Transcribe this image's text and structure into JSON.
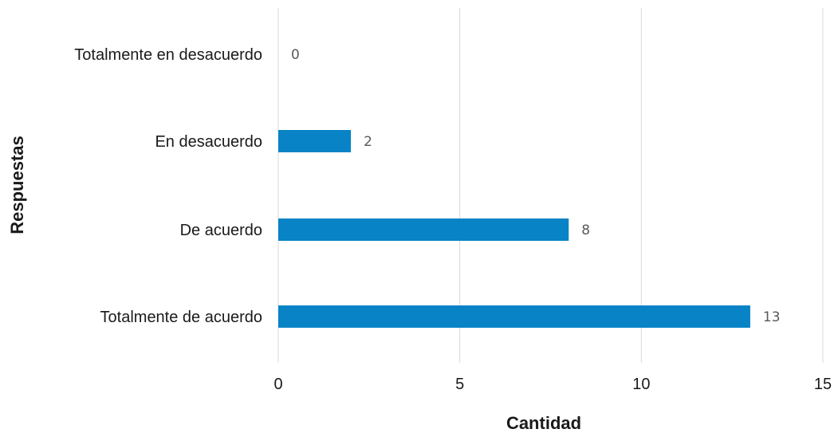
{
  "chart_data": {
    "type": "bar",
    "orientation": "horizontal",
    "categories": [
      "Totalmente en desacuerdo",
      "En desacuerdo",
      "De acuerdo",
      "Totalmente de acuerdo"
    ],
    "values": [
      0,
      2,
      8,
      13
    ],
    "data_labels": [
      "0",
      "2",
      "8",
      "13"
    ],
    "xlabel": "Cantidad",
    "ylabel": "Respuestas",
    "xlim": [
      0,
      15
    ],
    "xticks": [
      "0",
      "5",
      "10",
      "15"
    ],
    "grid": "vertical",
    "legend": "none",
    "bar_color": "#0883C6"
  }
}
